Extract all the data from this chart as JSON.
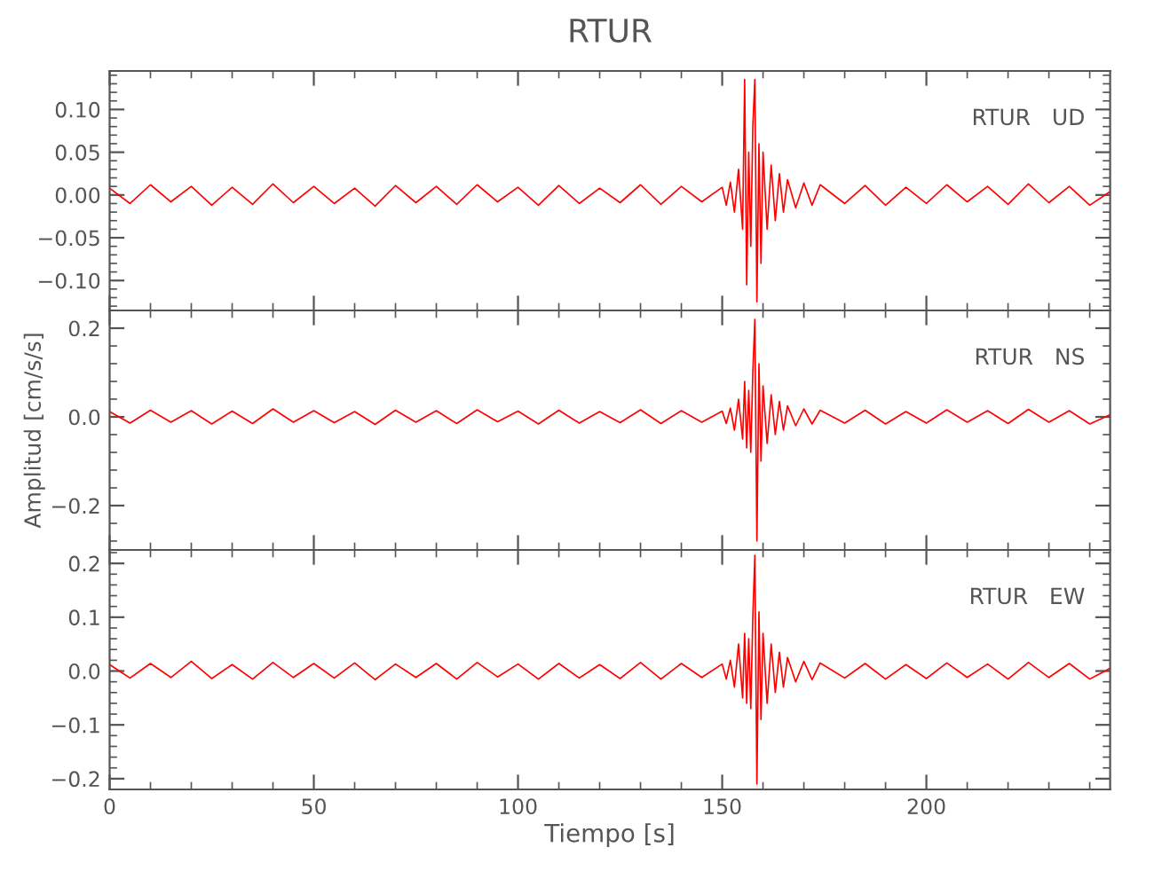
{
  "chart_data": [
    {
      "type": "line",
      "title": "RTUR",
      "annotations": [
        "RTUR   UD"
      ],
      "xlim": [
        0,
        245
      ],
      "ylim": [
        -0.135,
        0.145
      ],
      "tick_labels": "y",
      "yticks": [
        {
          "value": -0.1,
          "label": "−0.10"
        },
        {
          "value": -0.05,
          "label": "−0.05"
        },
        {
          "value": 0,
          "label": "0.00"
        },
        {
          "value": 0.05,
          "label": "0.05"
        },
        {
          "value": 0.1,
          "label": "0.10"
        }
      ],
      "series": [
        {
          "color": "#ff0000",
          "x": [
            0,
            5,
            10,
            15,
            20,
            25,
            30,
            35,
            40,
            45,
            50,
            55,
            60,
            65,
            70,
            75,
            80,
            85,
            90,
            95,
            100,
            105,
            110,
            115,
            120,
            125,
            130,
            135,
            140,
            145,
            150,
            151,
            152,
            153,
            154,
            155,
            155.5,
            156,
            156.5,
            157,
            157.5,
            158,
            158.5,
            159,
            159.5,
            160,
            161,
            162,
            163,
            164,
            165,
            166,
            168,
            170,
            172,
            174,
            180,
            185,
            190,
            195,
            200,
            205,
            210,
            215,
            220,
            225,
            230,
            235,
            240,
            245
          ],
          "values": [
            0.008,
            -0.01,
            0.012,
            -0.008,
            0.01,
            -0.012,
            0.009,
            -0.011,
            0.013,
            -0.009,
            0.01,
            -0.01,
            0.008,
            -0.013,
            0.011,
            -0.009,
            0.01,
            -0.011,
            0.012,
            -0.008,
            0.009,
            -0.012,
            0.011,
            -0.01,
            0.008,
            -0.009,
            0.012,
            -0.011,
            0.01,
            -0.008,
            0.009,
            -0.012,
            0.015,
            -0.02,
            0.03,
            -0.04,
            0.135,
            -0.105,
            0.05,
            -0.06,
            0.08,
            0.135,
            -0.125,
            0.06,
            -0.08,
            0.05,
            -0.04,
            0.035,
            -0.03,
            0.025,
            -0.02,
            0.018,
            -0.015,
            0.014,
            -0.012,
            0.012,
            -0.01,
            0.011,
            -0.012,
            0.009,
            -0.01,
            0.012,
            -0.008,
            0.01,
            -0.011,
            0.013,
            -0.009,
            0.01,
            -0.012,
            0.004
          ]
        }
      ]
    },
    {
      "type": "line",
      "ylabel": "Amplitud [cm/s/s]",
      "annotations": [
        "RTUR   NS"
      ],
      "xlim": [
        0,
        245
      ],
      "ylim": [
        -0.3,
        0.24
      ],
      "tick_labels": "y",
      "yticks": [
        {
          "value": -0.2,
          "label": "−0.2"
        },
        {
          "value": 0,
          "label": "0.0"
        },
        {
          "value": 0.2,
          "label": "0.2"
        }
      ],
      "series": [
        {
          "color": "#ff0000",
          "x": [
            0,
            5,
            10,
            15,
            20,
            25,
            30,
            35,
            40,
            45,
            50,
            55,
            60,
            65,
            70,
            75,
            80,
            85,
            90,
            95,
            100,
            105,
            110,
            115,
            120,
            125,
            130,
            135,
            140,
            145,
            150,
            151,
            152,
            153,
            154,
            155,
            155.5,
            156,
            156.5,
            157,
            157.5,
            158,
            158.5,
            159,
            159.5,
            160,
            161,
            162,
            163,
            164,
            165,
            166,
            168,
            170,
            172,
            174,
            180,
            185,
            190,
            195,
            200,
            205,
            210,
            215,
            220,
            225,
            230,
            235,
            240,
            245
          ],
          "values": [
            0.012,
            -0.014,
            0.015,
            -0.012,
            0.014,
            -0.016,
            0.013,
            -0.015,
            0.018,
            -0.012,
            0.014,
            -0.013,
            0.012,
            -0.017,
            0.015,
            -0.012,
            0.014,
            -0.015,
            0.016,
            -0.011,
            0.013,
            -0.016,
            0.015,
            -0.014,
            0.012,
            -0.013,
            0.016,
            -0.015,
            0.014,
            -0.012,
            0.013,
            -0.015,
            0.02,
            -0.03,
            0.04,
            -0.05,
            0.08,
            -0.07,
            0.06,
            -0.08,
            0.1,
            0.22,
            -0.28,
            0.12,
            -0.1,
            0.07,
            -0.06,
            0.05,
            -0.04,
            0.035,
            -0.03,
            0.025,
            -0.02,
            0.018,
            -0.016,
            0.015,
            -0.014,
            0.015,
            -0.016,
            0.012,
            -0.014,
            0.016,
            -0.012,
            0.014,
            -0.015,
            0.017,
            -0.012,
            0.014,
            -0.016,
            0.005
          ]
        }
      ]
    },
    {
      "type": "line",
      "xlabel": "Tiempo [s]",
      "annotations": [
        "RTUR   EW"
      ],
      "xlim": [
        0,
        245
      ],
      "ylim": [
        -0.22,
        0.225
      ],
      "xticks": [
        0,
        50,
        100,
        150,
        200
      ],
      "yticks": [
        {
          "value": -0.2,
          "label": "−0.2"
        },
        {
          "value": -0.1,
          "label": "−0.1"
        },
        {
          "value": 0,
          "label": "0.0"
        },
        {
          "value": 0.1,
          "label": "0.1"
        },
        {
          "value": 0.2,
          "label": "0.2"
        }
      ],
      "series": [
        {
          "color": "#ff0000",
          "x": [
            0,
            5,
            10,
            15,
            20,
            25,
            30,
            35,
            40,
            45,
            50,
            55,
            60,
            65,
            70,
            75,
            80,
            85,
            90,
            95,
            100,
            105,
            110,
            115,
            120,
            125,
            130,
            135,
            140,
            145,
            150,
            151,
            152,
            153,
            154,
            155,
            155.5,
            156,
            156.5,
            157,
            157.5,
            158,
            158.5,
            159,
            159.5,
            160,
            161,
            162,
            163,
            164,
            165,
            166,
            168,
            170,
            172,
            174,
            180,
            185,
            190,
            195,
            200,
            205,
            210,
            215,
            220,
            225,
            230,
            235,
            240,
            245
          ],
          "values": [
            0.012,
            -0.013,
            0.014,
            -0.012,
            0.018,
            -0.014,
            0.012,
            -0.015,
            0.016,
            -0.012,
            0.014,
            -0.013,
            0.015,
            -0.016,
            0.013,
            -0.012,
            0.014,
            -0.015,
            0.016,
            -0.011,
            0.013,
            -0.015,
            0.014,
            -0.013,
            0.012,
            -0.014,
            0.016,
            -0.015,
            0.014,
            -0.012,
            0.013,
            -0.015,
            0.02,
            -0.03,
            0.05,
            -0.05,
            0.07,
            -0.06,
            0.06,
            -0.07,
            0.1,
            0.215,
            -0.21,
            0.11,
            -0.09,
            0.07,
            -0.06,
            0.05,
            -0.04,
            0.035,
            -0.03,
            0.025,
            -0.02,
            0.018,
            -0.016,
            0.015,
            -0.013,
            0.014,
            -0.015,
            0.012,
            -0.014,
            0.015,
            -0.012,
            0.013,
            -0.015,
            0.016,
            -0.012,
            0.014,
            -0.015,
            0.005
          ]
        }
      ]
    }
  ]
}
